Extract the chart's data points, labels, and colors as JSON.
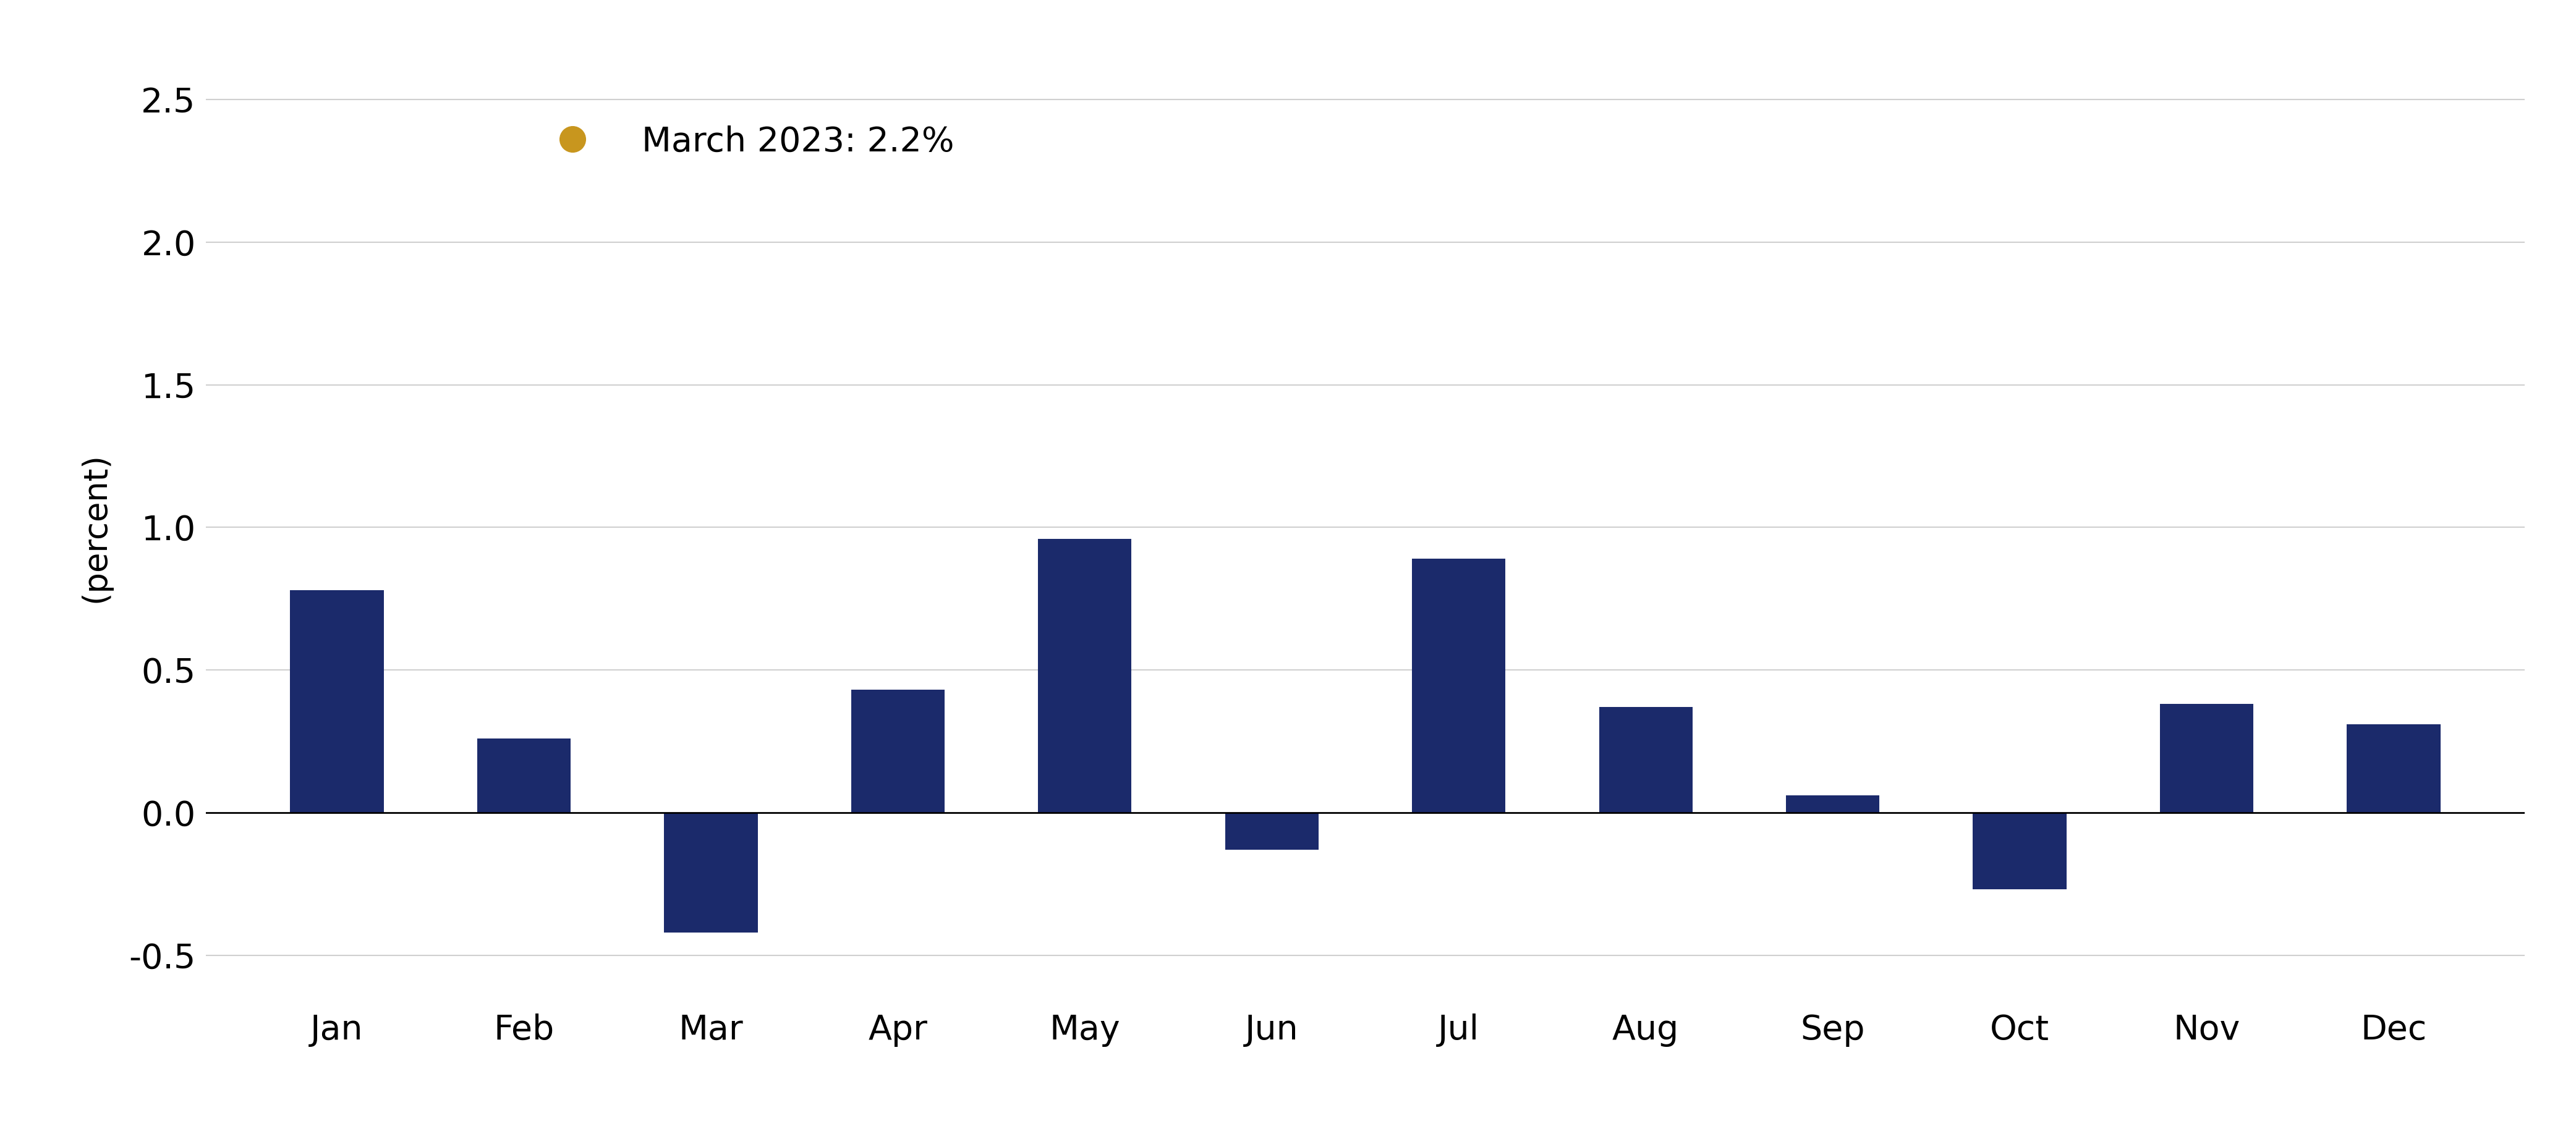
{
  "categories": [
    "Jan",
    "Feb",
    "Mar",
    "Apr",
    "May",
    "Jun",
    "Jul",
    "Aug",
    "Sep",
    "Oct",
    "Nov",
    "Dec"
  ],
  "values": [
    0.78,
    0.26,
    -0.42,
    0.43,
    0.96,
    -0.13,
    0.89,
    0.37,
    0.06,
    -0.27,
    0.38,
    0.31
  ],
  "bar_color": "#1b2a6b",
  "ylabel": "(percent)",
  "ylim": [
    -0.65,
    2.65
  ],
  "yticks": [
    -0.5,
    0.0,
    0.5,
    1.0,
    1.5,
    2.0,
    2.5
  ],
  "ytick_labels": [
    "-0.5",
    "0.0",
    "0.5",
    "1.0",
    "1.5",
    "2.0",
    "2.5"
  ],
  "legend_label": "March 2023: 2.2%",
  "legend_dot_color": "#c8961e",
  "background_color": "#ffffff",
  "grid_color": "#d0d0d0",
  "axis_fontsize": 38,
  "tick_fontsize": 40,
  "legend_fontsize": 40,
  "bar_width": 0.5
}
